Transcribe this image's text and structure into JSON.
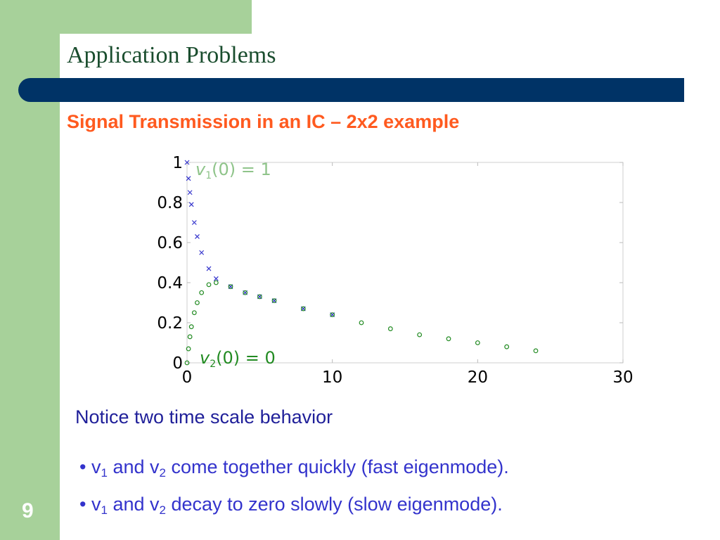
{
  "slide": {
    "title": "Application Problems",
    "subtitle": "Signal Transmission in an IC – 2x2 example",
    "notice": "Notice two time scale behavior",
    "bullets": [
      {
        "bullet": "•",
        "v": "v",
        "sub1": "1",
        "and": "and",
        "v2": "v",
        "sub2": "2",
        "rest": "come together quickly (fast eigenmode)."
      },
      {
        "bullet": "•",
        "v": "v",
        "sub1": "1",
        "and": "and",
        "v2": "v",
        "sub2": "2",
        "rest": "decay to zero slowly (slow eigenmode)."
      }
    ],
    "page_number": "9"
  },
  "colors": {
    "accent_green": "#a7d19a",
    "title_bar": "#003366",
    "subtitle": "#ff5a1f",
    "v1_series": "#3333cc",
    "v2_series": "#228b22"
  },
  "chart_data": {
    "type": "scatter",
    "xlim": [
      0,
      30
    ],
    "ylim": [
      0,
      1
    ],
    "x_ticks": [
      "0",
      "10",
      "20",
      "30"
    ],
    "y_ticks": [
      "0",
      "0.2",
      "0.4",
      "0.6",
      "0.8",
      "1"
    ],
    "annotations": {
      "v1": {
        "var": "v",
        "sub": "1",
        "rest": "(0) = 1"
      },
      "v2": {
        "var": "v",
        "sub": "2",
        "rest": "(0) = 0"
      }
    },
    "series": [
      {
        "marker": "x",
        "color": "#3333cc",
        "x": [
          0,
          0.1,
          0.2,
          0.3,
          0.5,
          0.7,
          1.0,
          1.5,
          2.0,
          3.0,
          4.0,
          5.0,
          6.0,
          8.0,
          10.0
        ],
        "y": [
          1.0,
          0.92,
          0.85,
          0.79,
          0.7,
          0.63,
          0.55,
          0.47,
          0.42,
          0.38,
          0.35,
          0.33,
          0.31,
          0.27,
          0.24
        ]
      },
      {
        "marker": "o",
        "color": "#228b22",
        "x": [
          0,
          0.1,
          0.2,
          0.3,
          0.5,
          0.7,
          1.0,
          1.5,
          2.0,
          3.0,
          4.0,
          5.0,
          6.0,
          8.0,
          10.0,
          12.0,
          14.0,
          16.0,
          18.0,
          20.0,
          22.0,
          24.0
        ],
        "y": [
          0.0,
          0.07,
          0.13,
          0.18,
          0.25,
          0.3,
          0.35,
          0.39,
          0.4,
          0.38,
          0.35,
          0.33,
          0.31,
          0.27,
          0.24,
          0.2,
          0.17,
          0.14,
          0.12,
          0.1,
          0.08,
          0.06
        ]
      }
    ]
  }
}
